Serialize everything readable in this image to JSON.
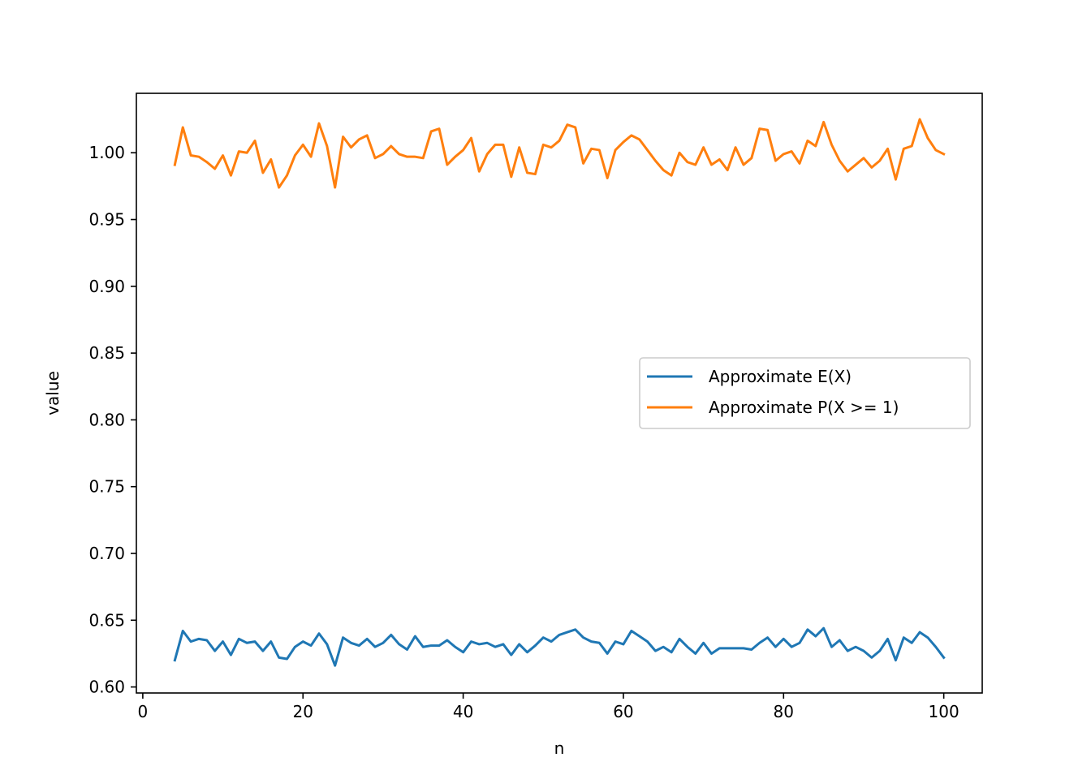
{
  "chart_data": {
    "type": "line",
    "title": "",
    "xlabel": "n",
    "ylabel": "value",
    "xlim": [
      -0.8,
      104.8
    ],
    "ylim": [
      0.5955,
      1.0445
    ],
    "xticks": [
      0,
      20,
      40,
      60,
      80,
      100
    ],
    "xtick_labels": [
      "0",
      "20",
      "40",
      "60",
      "80",
      "100"
    ],
    "yticks": [
      0.6,
      0.65,
      0.7,
      0.75,
      0.8,
      0.85,
      0.9,
      0.95,
      1.0
    ],
    "ytick_labels": [
      "0.60",
      "0.65",
      "0.70",
      "0.75",
      "0.80",
      "0.85",
      "0.90",
      "0.95",
      "1.00"
    ],
    "grid": false,
    "legend_position": "center-right",
    "x": [
      4,
      5,
      6,
      7,
      8,
      9,
      10,
      11,
      12,
      13,
      14,
      15,
      16,
      17,
      18,
      19,
      20,
      21,
      22,
      23,
      24,
      25,
      26,
      27,
      28,
      29,
      30,
      31,
      32,
      33,
      34,
      35,
      36,
      37,
      38,
      39,
      40,
      41,
      42,
      43,
      44,
      45,
      46,
      47,
      48,
      49,
      50,
      51,
      52,
      53,
      54,
      55,
      56,
      57,
      58,
      59,
      60,
      61,
      62,
      63,
      64,
      65,
      66,
      67,
      68,
      69,
      70,
      71,
      72,
      73,
      74,
      75,
      76,
      77,
      78,
      79,
      80,
      81,
      82,
      83,
      84,
      85,
      86,
      87,
      88,
      89,
      90,
      91,
      92,
      93,
      94,
      95,
      96,
      97,
      98,
      99,
      100
    ],
    "series": [
      {
        "name": "Approximate E(X)",
        "color": "#1f77b4",
        "values": [
          0.62,
          0.642,
          0.634,
          0.636,
          0.635,
          0.627,
          0.634,
          0.624,
          0.636,
          0.633,
          0.634,
          0.627,
          0.634,
          0.622,
          0.621,
          0.63,
          0.634,
          0.631,
          0.64,
          0.632,
          0.616,
          0.637,
          0.633,
          0.631,
          0.636,
          0.63,
          0.633,
          0.639,
          0.632,
          0.628,
          0.638,
          0.63,
          0.631,
          0.631,
          0.635,
          0.63,
          0.626,
          0.634,
          0.632,
          0.633,
          0.63,
          0.632,
          0.624,
          0.632,
          0.626,
          0.631,
          0.637,
          0.634,
          0.639,
          0.641,
          0.643,
          0.637,
          0.634,
          0.633,
          0.625,
          0.634,
          0.632,
          0.642,
          0.638,
          0.634,
          0.627,
          0.63,
          0.626,
          0.636,
          0.63,
          0.625,
          0.633,
          0.625,
          0.629,
          0.629,
          0.629,
          0.629,
          0.628,
          0.633,
          0.637,
          0.63,
          0.636,
          0.63,
          0.633,
          0.643,
          0.638,
          0.644,
          0.63,
          0.635,
          0.627,
          0.63,
          0.627,
          0.622,
          0.627,
          0.636,
          0.62,
          0.637,
          0.633,
          0.641,
          0.637,
          0.63,
          0.622
        ]
      },
      {
        "name": "Approximate P(X >= 1)",
        "color": "#ff7f0e",
        "values": [
          0.991,
          1.019,
          0.998,
          0.997,
          0.993,
          0.988,
          0.998,
          0.983,
          1.001,
          1.0,
          1.009,
          0.985,
          0.995,
          0.974,
          0.983,
          0.998,
          1.006,
          0.997,
          1.022,
          1.005,
          0.974,
          1.012,
          1.004,
          1.01,
          1.013,
          0.996,
          0.999,
          1.005,
          0.999,
          0.997,
          0.997,
          0.996,
          1.016,
          1.018,
          0.991,
          0.997,
          1.002,
          1.011,
          0.986,
          0.999,
          1.006,
          1.006,
          0.982,
          1.004,
          0.985,
          0.984,
          1.006,
          1.004,
          1.009,
          1.021,
          1.019,
          0.992,
          1.003,
          1.002,
          0.981,
          1.002,
          1.008,
          1.013,
          1.01,
          1.002,
          0.994,
          0.987,
          0.983,
          1.0,
          0.993,
          0.991,
          1.004,
          0.991,
          0.995,
          0.987,
          1.004,
          0.991,
          0.996,
          1.018,
          1.017,
          0.994,
          0.999,
          1.001,
          0.992,
          1.009,
          1.005,
          1.023,
          1.006,
          0.994,
          0.986,
          0.991,
          0.996,
          0.989,
          0.994,
          1.003,
          0.98,
          1.003,
          1.005,
          1.025,
          1.011,
          1.002,
          0.999
        ]
      }
    ]
  }
}
